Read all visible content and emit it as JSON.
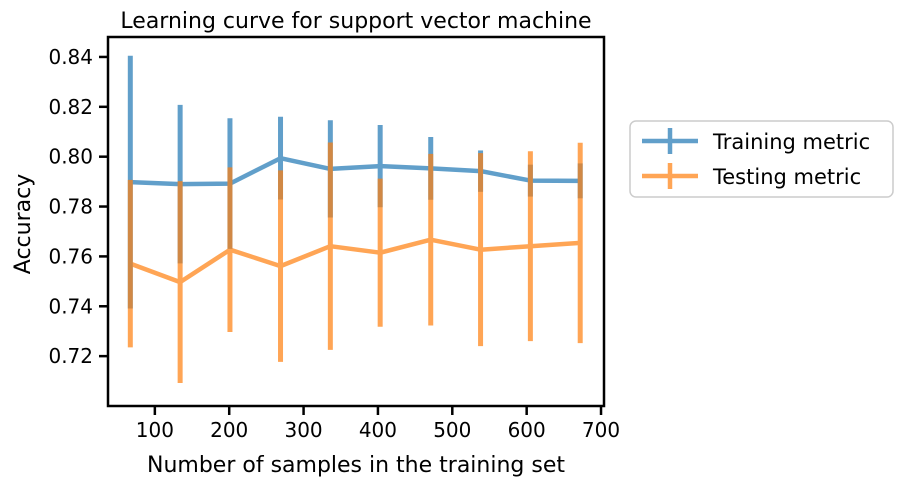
{
  "chart_data": {
    "type": "line",
    "title": "Learning curve for support vector machine",
    "xlabel": "Number of samples in the training set",
    "ylabel": "Accuracy",
    "xlim": [
      37,
      704
    ],
    "ylim": [
      0.7,
      0.848
    ],
    "xticks": [
      100,
      200,
      300,
      400,
      500,
      600,
      700
    ],
    "yticks": [
      0.72,
      0.74,
      0.76,
      0.78,
      0.8,
      0.82,
      0.84
    ],
    "x": [
      67,
      134,
      201,
      269,
      336,
      403,
      471,
      538,
      605,
      672
    ],
    "grid": false,
    "legend_position": "right, outside plot",
    "series": [
      {
        "name": "Training metric",
        "color": "#1f77b4",
        "values": [
          0.7898,
          0.789,
          0.7892,
          0.7994,
          0.7951,
          0.7962,
          0.7953,
          0.7942,
          0.7904,
          0.7903
        ],
        "errors": [
          0.0507,
          0.0318,
          0.0262,
          0.0166,
          0.0195,
          0.0165,
          0.0126,
          0.0083,
          0.0064,
          0.007
        ]
      },
      {
        "name": "Testing metric",
        "color": "#ff7f0e",
        "values": [
          0.7571,
          0.7497,
          0.7627,
          0.7561,
          0.7641,
          0.7615,
          0.7667,
          0.7627,
          0.7641,
          0.7654
        ],
        "errors": [
          0.0336,
          0.0405,
          0.033,
          0.0384,
          0.0416,
          0.0297,
          0.0344,
          0.0387,
          0.0381,
          0.0402
        ]
      }
    ]
  }
}
